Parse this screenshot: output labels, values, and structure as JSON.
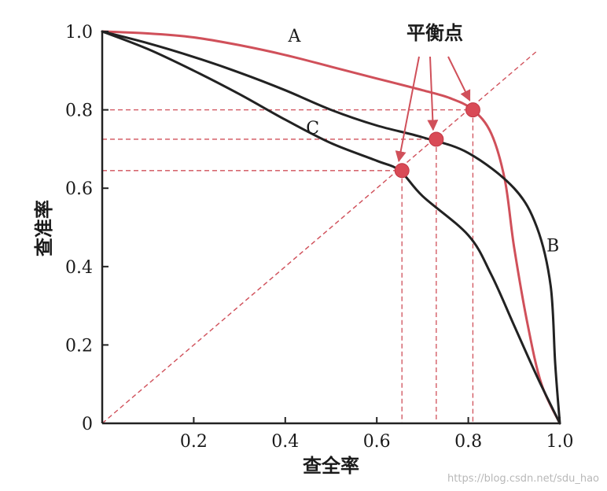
{
  "chart_data": {
    "type": "line",
    "xlabel": "查全率",
    "ylabel": "查准率",
    "xlim": [
      0,
      1
    ],
    "ylim": [
      0,
      1
    ],
    "x_ticks": [
      "0.2",
      "0.4",
      "0.6",
      "0.8",
      "1.0"
    ],
    "y_ticks": [
      "0",
      "0.2",
      "0.4",
      "0.6",
      "0.8",
      "1.0"
    ],
    "series": [
      {
        "name": "A",
        "color": "#d0505a",
        "points": [
          [
            0.0,
            1.0
          ],
          [
            0.1,
            0.995
          ],
          [
            0.2,
            0.985
          ],
          [
            0.3,
            0.965
          ],
          [
            0.4,
            0.94
          ],
          [
            0.5,
            0.91
          ],
          [
            0.6,
            0.88
          ],
          [
            0.7,
            0.85
          ],
          [
            0.76,
            0.83
          ],
          [
            0.81,
            0.8
          ],
          [
            0.85,
            0.74
          ],
          [
            0.88,
            0.62
          ],
          [
            0.9,
            0.45
          ],
          [
            0.93,
            0.25
          ],
          [
            0.96,
            0.1
          ],
          [
            1.0,
            0.0
          ]
        ]
      },
      {
        "name": "B",
        "color": "#222222",
        "points": [
          [
            0.0,
            1.0
          ],
          [
            0.1,
            0.97
          ],
          [
            0.2,
            0.935
          ],
          [
            0.3,
            0.895
          ],
          [
            0.4,
            0.85
          ],
          [
            0.5,
            0.8
          ],
          [
            0.6,
            0.76
          ],
          [
            0.7,
            0.73
          ],
          [
            0.8,
            0.69
          ],
          [
            0.9,
            0.6
          ],
          [
            0.95,
            0.5
          ],
          [
            0.98,
            0.35
          ],
          [
            0.99,
            0.15
          ],
          [
            1.0,
            0.0
          ]
        ]
      },
      {
        "name": "C",
        "color": "#222222",
        "points": [
          [
            0.0,
            1.0
          ],
          [
            0.1,
            0.955
          ],
          [
            0.2,
            0.9
          ],
          [
            0.3,
            0.84
          ],
          [
            0.4,
            0.775
          ],
          [
            0.5,
            0.715
          ],
          [
            0.6,
            0.67
          ],
          [
            0.65,
            0.645
          ],
          [
            0.7,
            0.58
          ],
          [
            0.8,
            0.48
          ],
          [
            0.85,
            0.38
          ],
          [
            0.9,
            0.25
          ],
          [
            0.95,
            0.12
          ],
          [
            1.0,
            0.0
          ]
        ]
      }
    ],
    "reference_line": {
      "from": [
        0,
        0
      ],
      "to": [
        0.95,
        0.95
      ],
      "color": "#d0505a",
      "style": "dashed"
    },
    "break_even_points": [
      {
        "x": 0.81,
        "y": 0.8
      },
      {
        "x": 0.73,
        "y": 0.725
      },
      {
        "x": 0.655,
        "y": 0.645
      }
    ],
    "annotations": [
      {
        "text": "平衡点"
      }
    ],
    "curve_labels": [
      {
        "text": "A",
        "x": 0.42,
        "y": 0.99
      },
      {
        "text": "C",
        "x": 0.46,
        "y": 0.755
      },
      {
        "text": "B",
        "x": 0.985,
        "y": 0.455
      }
    ],
    "grid": false
  },
  "watermark": "https://blog.csdn.net/sdu_hao"
}
